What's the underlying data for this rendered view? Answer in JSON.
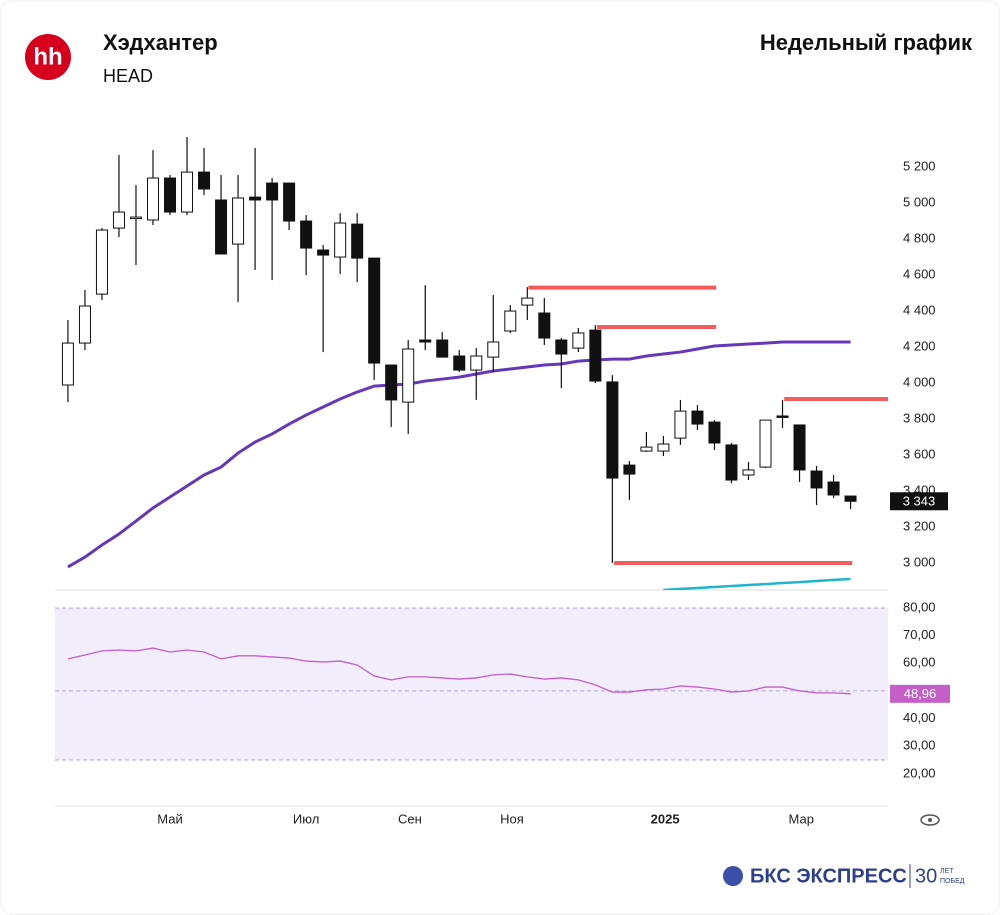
{
  "header": {
    "title": "Хэдхантер",
    "ticker": "HEAD",
    "subtitle": "Недельный график",
    "logo": "hh"
  },
  "chart_data": [
    {
      "type": "candlestick",
      "categories": [
        null,
        null,
        null,
        null,
        null,
        null,
        null,
        null,
        null,
        null,
        null,
        null,
        null,
        null,
        null,
        null,
        null,
        null,
        null,
        null,
        null,
        null,
        null,
        null,
        null,
        null,
        null,
        null,
        null,
        null,
        null,
        null,
        null,
        null,
        null,
        null,
        null,
        null,
        null,
        null,
        null,
        null,
        null,
        null,
        null,
        null,
        null
      ],
      "open": [
        3989,
        4222,
        4494,
        4861,
        4917,
        4906,
        5139,
        4950,
        5172,
        5017,
        4772,
        5033,
        5111,
        5111,
        4900,
        4739,
        4700,
        4883,
        4694,
        4100,
        3894,
        4239,
        4239,
        4150,
        4072,
        4144,
        4289,
        4433,
        4389,
        4239,
        4194,
        4294,
        4006,
        3544,
        3622,
        3622,
        3694,
        3844,
        3783,
        3656,
        3489,
        3533,
        3817,
        3767,
        3511,
        3450,
        3372
      ],
      "high": [
        4350,
        4517,
        4861,
        5267,
        5100,
        5294,
        5156,
        5367,
        5306,
        5156,
        5156,
        5306,
        5139,
        5111,
        4933,
        4767,
        4944,
        4944,
        4694,
        4100,
        4239,
        4544,
        4283,
        4183,
        4194,
        4489,
        4433,
        4533,
        4472,
        4250,
        4306,
        4322,
        4044,
        3567,
        3728,
        3706,
        3906,
        3878,
        3794,
        3667,
        3561,
        3794,
        3906,
        3767,
        3539,
        3489,
        3372
      ],
      "low": [
        3894,
        4183,
        4461,
        4811,
        4656,
        4878,
        4933,
        4933,
        5044,
        4717,
        4450,
        4628,
        4572,
        4850,
        4600,
        4172,
        4606,
        4561,
        4017,
        3756,
        3717,
        4183,
        4144,
        4061,
        3906,
        4061,
        4278,
        4350,
        4211,
        3972,
        4172,
        4000,
        3000,
        3350,
        3617,
        3594,
        3656,
        3739,
        3628,
        3444,
        3461,
        3528,
        3750,
        3450,
        3322,
        3361,
        3300
      ],
      "close": [
        4222,
        4428,
        4850,
        4950,
        4922,
        5139,
        4950,
        5172,
        5078,
        4717,
        5028,
        5017,
        5017,
        4900,
        4750,
        4711,
        4889,
        4694,
        4111,
        3906,
        4189,
        4228,
        4144,
        4072,
        4150,
        4228,
        4400,
        4472,
        4250,
        4161,
        4278,
        4011,
        3472,
        3494,
        3644,
        3661,
        3844,
        3772,
        3667,
        3461,
        3517,
        3794,
        3811,
        3517,
        3417,
        3378,
        3343
      ],
      "series": [
        {
          "color": "#6438b8",
          "values": [
            2978,
            3033,
            3100,
            3161,
            3233,
            3306,
            3367,
            3428,
            3489,
            3533,
            3611,
            3672,
            3717,
            3772,
            3822,
            3867,
            3911,
            3950,
            3983,
            3989,
            3994,
            4011,
            4022,
            4033,
            4050,
            4067,
            4078,
            4089,
            4100,
            4106,
            4122,
            4128,
            4133,
            4133,
            4150,
            4161,
            4172,
            4189,
            4206,
            4211,
            4217,
            4222,
            4228,
            4228,
            4228,
            4228,
            4228
          ]
        },
        {
          "color": "#1eb6cc",
          "values": [
            null,
            null,
            null,
            null,
            null,
            null,
            null,
            null,
            null,
            null,
            null,
            null,
            null,
            null,
            null,
            null,
            null,
            null,
            null,
            null,
            null,
            null,
            null,
            null,
            null,
            null,
            null,
            null,
            null,
            null,
            null,
            null,
            null,
            null,
            null,
            2850,
            2856,
            2861,
            2867,
            2872,
            2878,
            2883,
            2889,
            2894,
            2900,
            2906,
            2911
          ]
        }
      ],
      "levels": [
        {
          "value": 4530,
          "from": 27.06,
          "to": 38.1,
          "color": "#f25c5c"
        },
        {
          "value": 4311,
          "from": 31.1,
          "to": 38.1,
          "color": "#f25c5c"
        },
        {
          "value": 3911,
          "from": 42.1,
          "to": 48.2,
          "color": "#f25c5c"
        },
        {
          "value": 3000,
          "from": 32.1,
          "to": 46.1,
          "color": "#f25c5c"
        }
      ],
      "last_price": {
        "value": 3343,
        "label": "3 343"
      },
      "xlim": [
        -0.76,
        48.2
      ],
      "xticks": [
        {
          "value": 6,
          "label": "Май"
        },
        {
          "value": 14,
          "label": "Июл"
        },
        {
          "value": 20.1,
          "label": "Сен"
        },
        {
          "value": 26.1,
          "label": "Ноя"
        },
        {
          "value": 35.1,
          "label": "2025"
        },
        {
          "value": 43.1,
          "label": "Мар"
        }
      ],
      "ylim": [
        2850,
        5417
      ],
      "yticks": [
        {
          "value": 3000,
          "label": "3 000"
        },
        {
          "value": 3200,
          "label": "3 200"
        },
        {
          "value": 3400,
          "label": "3 400"
        },
        {
          "value": 3600,
          "label": "3 600"
        },
        {
          "value": 3800,
          "label": "3 800"
        },
        {
          "value": 4000,
          "label": "4 000"
        },
        {
          "value": 4200,
          "label": "4 200"
        },
        {
          "value": 4400,
          "label": "4 400"
        },
        {
          "value": 4600,
          "label": "4 600"
        },
        {
          "value": 4800,
          "label": "4 800"
        },
        {
          "value": 5000,
          "label": "5 000"
        },
        {
          "value": 5200,
          "label": "5 200"
        }
      ],
      "grid": false
    },
    {
      "type": "line",
      "color": "#c45fc8",
      "values": [
        61.6,
        63.0,
        64.5,
        64.8,
        64.5,
        65.5,
        64.1,
        64.8,
        64.1,
        61.6,
        62.7,
        62.7,
        62.3,
        61.9,
        60.8,
        60.5,
        60.8,
        59.4,
        55.4,
        54.0,
        55.1,
        55.1,
        54.7,
        54.3,
        54.7,
        55.8,
        56.1,
        55.1,
        54.3,
        54.7,
        54.0,
        52.2,
        49.6,
        49.6,
        50.4,
        50.7,
        51.8,
        51.4,
        50.7,
        49.6,
        50.0,
        51.4,
        51.4,
        50.0,
        49.3,
        49.3,
        48.96
      ],
      "last_value": {
        "value": 48.96,
        "label": "48,96"
      },
      "band": [
        25,
        80
      ],
      "dashed_lines": [
        80,
        50,
        25
      ],
      "ylim": [
        18.5,
        82.9
      ],
      "yticks": [
        {
          "value": 20,
          "label": "20,00"
        },
        {
          "value": 30,
          "label": "30,00"
        },
        {
          "value": 40,
          "label": "40,00"
        },
        {
          "value": 50,
          "label": "50,00"
        },
        {
          "value": 60,
          "label": "60,00"
        },
        {
          "value": 70,
          "label": "70,00"
        },
        {
          "value": 80,
          "label": "80,00"
        }
      ]
    }
  ],
  "footer": {
    "brand": "БКС ЭКСПРЕСС",
    "years": "30",
    "years_word": "ЛЕТ",
    "victory_word": "ПОБЕД"
  }
}
